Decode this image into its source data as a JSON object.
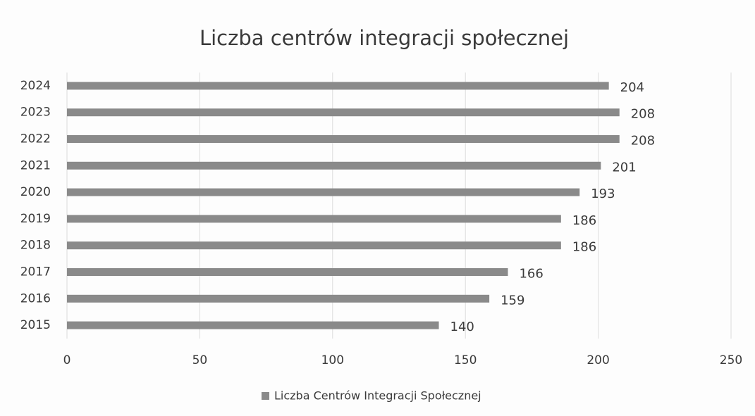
{
  "chart_data": {
    "type": "barh",
    "title": "Liczba centrów integracji społecznej",
    "categories": [
      "2024",
      "2023",
      "2022",
      "2021",
      "2020",
      "2019",
      "2018",
      "2017",
      "2016",
      "2015"
    ],
    "series": [
      {
        "name": "Liczba Centrów Integracji Społecznej",
        "color": "#8a8a8a",
        "values": [
          204,
          208,
          208,
          201,
          193,
          186,
          186,
          166,
          159,
          140
        ]
      }
    ],
    "xlim": [
      0,
      250
    ],
    "xticks": [
      0,
      50,
      100,
      150,
      200,
      250
    ],
    "grid": true,
    "legend": "bottom"
  }
}
